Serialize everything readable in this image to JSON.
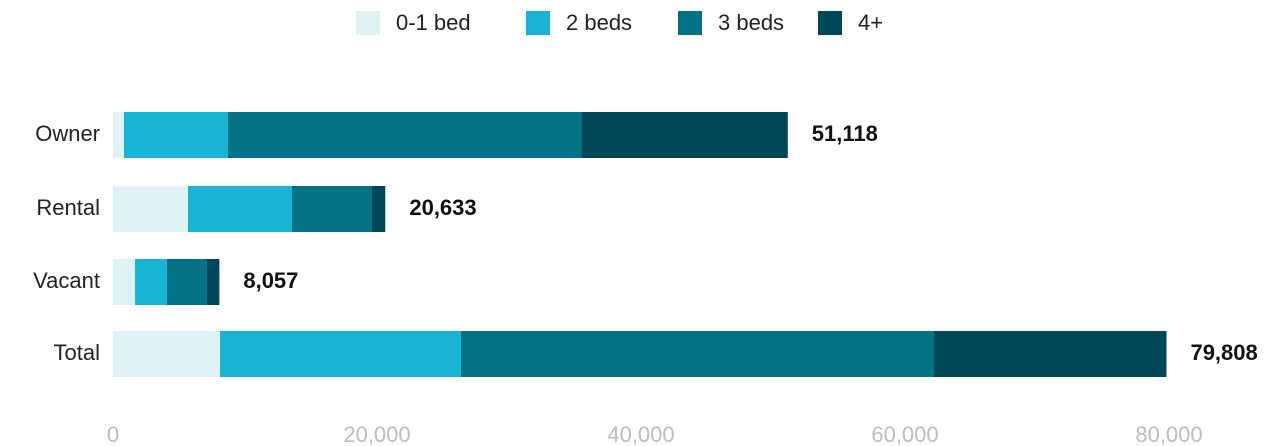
{
  "chart_data": {
    "type": "stacked-bar-horizontal",
    "categories": [
      "Owner",
      "Rental",
      "Vacant",
      "Total"
    ],
    "series": [
      {
        "name": "0-1 bed",
        "color": "#dff3f5",
        "values": [
          830,
          5680,
          1670,
          8110
        ]
      },
      {
        "name": "2 beds",
        "color": "#17b5d3",
        "values": [
          7880,
          7880,
          2420,
          18250
        ]
      },
      {
        "name": "3 beds",
        "color": "#037385",
        "values": [
          26820,
          6060,
          3030,
          35840
        ]
      },
      {
        "name": "4+",
        "color": "#00475a",
        "values": [
          15590,
          1010,
          940,
          17610
        ]
      }
    ],
    "totals": [
      51118,
      20633,
      8057,
      79808
    ],
    "total_labels": [
      "51,118",
      "20,633",
      "8,057",
      "79,808"
    ],
    "xlim": [
      0,
      80000
    ],
    "xticks": [
      0,
      {
        "value": 20000,
        "label": "20,000"
      },
      {
        "value": 40000,
        "label": "40,000"
      },
      {
        "value": 60000,
        "label": "60,000"
      },
      {
        "value": 80000,
        "label": "80,000"
      }
    ],
    "grid": false,
    "legend": "top"
  }
}
